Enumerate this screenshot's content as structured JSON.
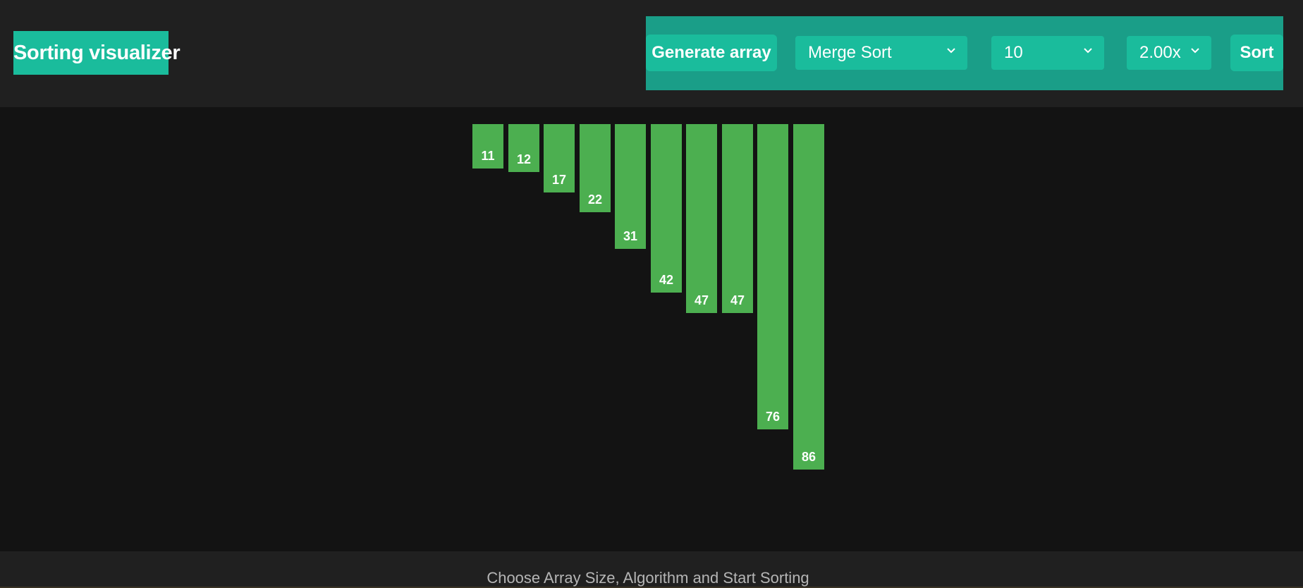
{
  "app": {
    "title": "Sorting visualizer"
  },
  "toolbar": {
    "generate_label": "Generate array",
    "algorithm_selected": "Merge Sort",
    "size_selected": "10",
    "speed_selected": "2.00x",
    "sort_label": "Sort"
  },
  "array": {
    "values": [
      11,
      12,
      17,
      22,
      31,
      42,
      47,
      47,
      76,
      86
    ]
  },
  "footer": {
    "text": "Choose Array Size, Algorithm and Start Sorting"
  },
  "colors": {
    "accent": "#1abc9c",
    "bar": "#4caf50",
    "background": "#131313",
    "panel": "#202020"
  }
}
